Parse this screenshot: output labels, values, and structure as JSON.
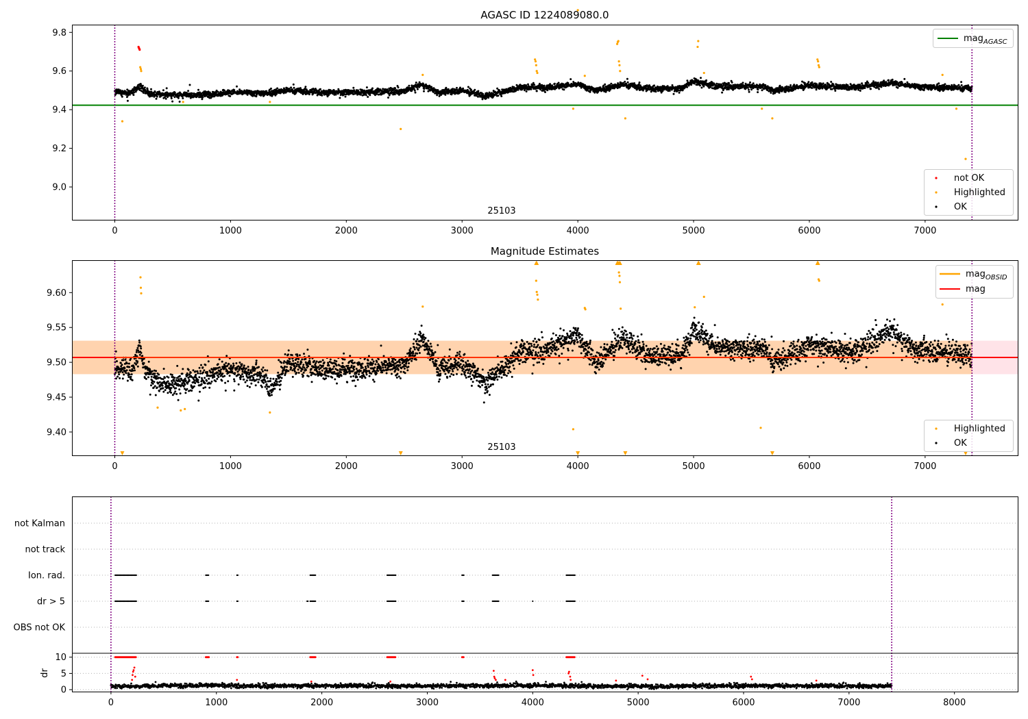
{
  "chart_data": [
    {
      "type": "scatter",
      "title": "AGASC ID 1224089080.0",
      "xlim": [
        -370,
        7800
      ],
      "ylim": [
        8.83,
        9.84
      ],
      "xticks": [
        0,
        1000,
        2000,
        3000,
        4000,
        5000,
        6000,
        7000,
        8000
      ],
      "yticks": [
        9.0,
        9.2,
        9.4,
        9.6,
        9.8
      ],
      "ytick_labels": [
        "9.0",
        "9.2",
        "9.4",
        "9.6",
        "9.8"
      ],
      "vlines": [
        0,
        7405
      ],
      "obsid_label": {
        "text": "25103",
        "x": 3700
      },
      "legend_top": {
        "position": "upper right",
        "entries": [
          {
            "label": "mag",
            "sub": "AGASC",
            "color": "#008000"
          }
        ]
      },
      "legend_bottom": {
        "position": "lower right",
        "entries": [
          {
            "label": "not OK",
            "color": "#ff0000"
          },
          {
            "label": "Highlighted",
            "color": "#ffa500"
          },
          {
            "label": "OK",
            "color": "#000000"
          }
        ]
      },
      "hline": {
        "y": 9.423,
        "x": [
          -370,
          7800
        ],
        "color": "#008000"
      },
      "series": [
        {
          "name": "OK",
          "color": "#000000",
          "trend": [
            [
              0,
              9.49
            ],
            [
              150,
              9.49
            ],
            [
              220,
              9.52
            ],
            [
              300,
              9.48
            ],
            [
              700,
              9.475
            ],
            [
              1000,
              9.49
            ],
            [
              1300,
              9.485
            ],
            [
              1500,
              9.5
            ],
            [
              1800,
              9.49
            ],
            [
              2000,
              9.49
            ],
            [
              2500,
              9.495
            ],
            [
              2650,
              9.53
            ],
            [
              2800,
              9.49
            ],
            [
              3000,
              9.5
            ],
            [
              3200,
              9.47
            ],
            [
              3500,
              9.515
            ],
            [
              3700,
              9.515
            ],
            [
              4000,
              9.53
            ],
            [
              4150,
              9.5
            ],
            [
              4400,
              9.53
            ],
            [
              4600,
              9.51
            ],
            [
              4900,
              9.51
            ],
            [
              5000,
              9.55
            ],
            [
              5200,
              9.52
            ],
            [
              5600,
              9.52
            ],
            [
              5700,
              9.5
            ],
            [
              6000,
              9.525
            ],
            [
              6200,
              9.52
            ],
            [
              6400,
              9.515
            ],
            [
              6700,
              9.54
            ],
            [
              6900,
              9.52
            ],
            [
              7405,
              9.51
            ]
          ]
        },
        {
          "name": "not OK",
          "color": "#ff0000",
          "points": [
            [
              205,
              9.725
            ],
            [
              208,
              9.72
            ],
            [
              212,
              9.715
            ],
            [
              215,
              9.71
            ]
          ]
        },
        {
          "name": "Highlighted",
          "color": "#ffa500",
          "points": [
            [
              65,
              9.34
            ],
            [
              220,
              9.62
            ],
            [
              225,
              9.61
            ],
            [
              228,
              9.6
            ],
            [
              590,
              9.44
            ],
            [
              1340,
              9.44
            ],
            [
              2470,
              9.3
            ],
            [
              2660,
              9.58
            ],
            [
              3630,
              9.66
            ],
            [
              3635,
              9.65
            ],
            [
              3640,
              9.63
            ],
            [
              3645,
              9.6
            ],
            [
              3650,
              9.59
            ],
            [
              3960,
              9.405
            ],
            [
              4000,
              9.915
            ],
            [
              4060,
              9.575
            ],
            [
              4340,
              9.74
            ],
            [
              4345,
              9.75
            ],
            [
              4350,
              9.755
            ],
            [
              4355,
              9.65
            ],
            [
              4360,
              9.63
            ],
            [
              4365,
              9.6
            ],
            [
              4410,
              9.355
            ],
            [
              5035,
              9.725
            ],
            [
              5040,
              9.755
            ],
            [
              5090,
              9.59
            ],
            [
              5590,
              9.405
            ],
            [
              5680,
              9.355
            ],
            [
              6070,
              9.66
            ],
            [
              6075,
              9.65
            ],
            [
              6080,
              9.63
            ],
            [
              6085,
              9.62
            ],
            [
              7150,
              9.58
            ],
            [
              7270,
              9.405
            ],
            [
              7350,
              9.145
            ]
          ]
        }
      ]
    },
    {
      "type": "scatter",
      "title": "Magnitude Estimates",
      "xlim": [
        -370,
        7800
      ],
      "ylim": [
        9.3665,
        9.6465
      ],
      "xticks": [
        0,
        1000,
        2000,
        3000,
        4000,
        5000,
        6000,
        7000,
        8000
      ],
      "yticks": [
        9.4,
        9.45,
        9.5,
        9.55,
        9.6
      ],
      "ytick_labels": [
        "9.40",
        "9.45",
        "9.50",
        "9.55",
        "9.60"
      ],
      "vlines": [
        0,
        7405
      ],
      "obsid_label": {
        "text": "25103",
        "x": 3700
      },
      "legend_top": {
        "position": "upper right",
        "entries": [
          {
            "label": "mag",
            "sub": "OBSID",
            "color": "#ffa500"
          },
          {
            "label": "mag",
            "color": "#ff0000"
          }
        ]
      },
      "legend_bottom": {
        "position": "lower right",
        "entries": [
          {
            "label": "Highlighted",
            "color": "#ffa500"
          },
          {
            "label": "OK",
            "color": "#000000"
          }
        ]
      },
      "hline": {
        "y": 9.507,
        "x": [
          -370,
          7800
        ],
        "color": "#ff0000"
      },
      "band_mag": {
        "y": [
          9.483,
          9.531
        ],
        "x": [
          -370,
          7800
        ],
        "color": "#ffc0cb"
      },
      "band_obsid": {
        "y": [
          9.483,
          9.531
        ],
        "x": [
          -370,
          7405
        ],
        "color": "#ffa500"
      },
      "series": [
        {
          "name": "OK",
          "color": "#000000",
          "trend": [
            [
              0,
              9.492
            ],
            [
              150,
              9.49
            ],
            [
              210,
              9.52
            ],
            [
              260,
              9.49
            ],
            [
              400,
              9.468
            ],
            [
              700,
              9.475
            ],
            [
              1000,
              9.49
            ],
            [
              1300,
              9.48
            ],
            [
              1350,
              9.46
            ],
            [
              1500,
              9.5
            ],
            [
              1800,
              9.49
            ],
            [
              2000,
              9.49
            ],
            [
              2500,
              9.495
            ],
            [
              2650,
              9.535
            ],
            [
              2800,
              9.49
            ],
            [
              3000,
              9.5
            ],
            [
              3200,
              9.47
            ],
            [
              3500,
              9.515
            ],
            [
              3700,
              9.515
            ],
            [
              4000,
              9.54
            ],
            [
              4150,
              9.5
            ],
            [
              4400,
              9.535
            ],
            [
              4600,
              9.51
            ],
            [
              4900,
              9.51
            ],
            [
              5000,
              9.55
            ],
            [
              5200,
              9.52
            ],
            [
              5600,
              9.52
            ],
            [
              5700,
              9.5
            ],
            [
              6000,
              9.525
            ],
            [
              6200,
              9.52
            ],
            [
              6400,
              9.515
            ],
            [
              6700,
              9.545
            ],
            [
              6900,
              9.52
            ],
            [
              7405,
              9.51
            ]
          ]
        },
        {
          "name": "Highlighted",
          "color": "#ffa500",
          "points": [
            [
              222,
              9.622
            ],
            [
              225,
              9.607
            ],
            [
              228,
              9.599
            ],
            [
              370,
              9.435
            ],
            [
              570,
              9.431
            ],
            [
              605,
              9.433
            ],
            [
              1340,
              9.428
            ],
            [
              2660,
              9.58
            ],
            [
              3640,
              9.617
            ],
            [
              3645,
              9.601
            ],
            [
              3650,
              9.597
            ],
            [
              3655,
              9.59
            ],
            [
              3960,
              9.404
            ],
            [
              4060,
              9.578
            ],
            [
              4065,
              9.576
            ],
            [
              4355,
              9.629
            ],
            [
              4360,
              9.624
            ],
            [
              4363,
              9.615
            ],
            [
              4370,
              9.577
            ],
            [
              5010,
              9.579
            ],
            [
              5090,
              9.594
            ],
            [
              5580,
              9.406
            ],
            [
              6080,
              9.619
            ],
            [
              6085,
              9.617
            ],
            [
              7150,
              9.583
            ],
            [
              7275,
              9.406
            ]
          ]
        },
        {
          "name": "Highlighted (clipped)",
          "color": "#ffa500",
          "markers_top": [
            3640,
            3645,
            4340,
            4345,
            4355,
            4365,
            5040,
            5045,
            6070,
            6075
          ],
          "markers_bottom": [
            65,
            2470,
            4000,
            4410,
            5680,
            7350
          ]
        }
      ]
    },
    {
      "type": "scatter",
      "title": "",
      "xlim": [
        -370,
        8600
      ],
      "vlines": [
        0,
        7405
      ],
      "flag_rows": [
        {
          "label": "not Kalman",
          "segments": []
        },
        {
          "label": "not track",
          "segments": []
        },
        {
          "label": "Ion. rad.",
          "segments": [
            [
              40,
              240
            ],
            [
              900,
              930
            ],
            [
              1195,
              1205
            ],
            [
              1890,
              1940
            ],
            [
              2620,
              2700
            ],
            [
              3330,
              3350
            ],
            [
              3620,
              3680
            ],
            [
              4320,
              4400
            ]
          ]
        },
        {
          "label": "dr > 5",
          "segments": [
            [
              40,
              240
            ],
            [
              900,
              930
            ],
            [
              1195,
              1205
            ],
            [
              1860,
              1870
            ],
            [
              1890,
              1940
            ],
            [
              2620,
              2700
            ],
            [
              3330,
              3350
            ],
            [
              3620,
              3680
            ],
            [
              4000,
              4005
            ],
            [
              4320,
              4400
            ]
          ]
        },
        {
          "label": "OBS not OK",
          "segments": []
        }
      ],
      "dr_axis": {
        "ylabel": "dr",
        "ylim": [
          -0.6,
          11.2
        ],
        "yticks": [
          0,
          5,
          10
        ],
        "ytick_labels": [
          "0",
          "5",
          "10"
        ]
      },
      "series": [
        {
          "name": "OK",
          "color": "#000000",
          "trend": [
            [
              0,
              1.0
            ],
            [
              500,
              1.2
            ],
            [
              900,
              1.4
            ],
            [
              1200,
              1.1
            ],
            [
              2000,
              1.2
            ],
            [
              3000,
              1.1
            ],
            [
              4000,
              1.3
            ],
            [
              5000,
              1.0
            ],
            [
              6000,
              1.2
            ],
            [
              7405,
              1.1
            ]
          ]
        },
        {
          "name": "not OK",
          "color": "#ff0000",
          "clipped_at": 10,
          "clipped": [
            [
              40,
              240
            ],
            [
              900,
              930
            ],
            [
              1195,
              1205
            ],
            [
              1890,
              1940
            ],
            [
              2620,
              2700
            ],
            [
              3330,
              3350
            ],
            [
              4320,
              4400
            ]
          ],
          "points": [
            [
              200,
              3.0
            ],
            [
              205,
              4.5
            ],
            [
              210,
              5.5
            ],
            [
              215,
              6.0
            ],
            [
              222,
              6.8
            ],
            [
              230,
              4.0
            ],
            [
              1195,
              3.0
            ],
            [
              1900,
              2.5
            ],
            [
              2650,
              2.5
            ],
            [
              3630,
              5.8
            ],
            [
              3635,
              4.0
            ],
            [
              3640,
              3.5
            ],
            [
              3650,
              3.0
            ],
            [
              3740,
              3.0
            ],
            [
              4000,
              6.0
            ],
            [
              4005,
              4.5
            ],
            [
              4340,
              5.0
            ],
            [
              4345,
              5.5
            ],
            [
              4355,
              4.0
            ],
            [
              4360,
              3.0
            ],
            [
              4790,
              2.8
            ],
            [
              5040,
              4.3
            ],
            [
              5090,
              3.2
            ],
            [
              6070,
              4.0
            ],
            [
              6080,
              3.2
            ],
            [
              6690,
              2.8
            ]
          ]
        }
      ]
    }
  ]
}
